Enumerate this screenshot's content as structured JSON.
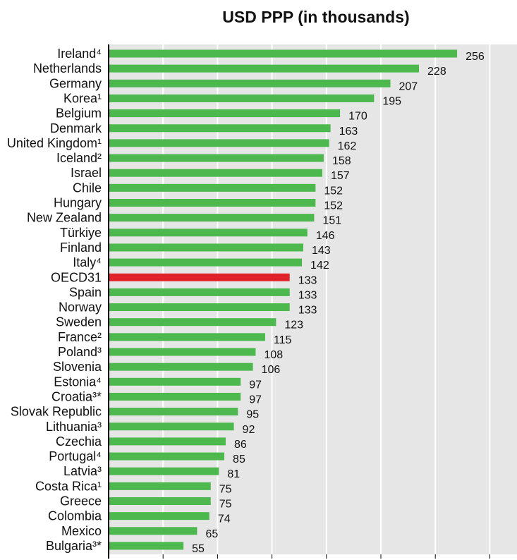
{
  "chart_data": {
    "type": "bar",
    "orientation": "horizontal",
    "title": "USD PPP (in thousands)",
    "xlabel": "",
    "ylabel": "",
    "xlim": [
      0,
      300
    ],
    "grid": true,
    "categories": [
      "Ireland⁴",
      "Netherlands",
      "Germany",
      "Korea¹",
      "Belgium",
      "Denmark",
      "United Kingdom¹",
      "Iceland²",
      "Israel",
      "Chile",
      "Hungary",
      "New Zealand",
      "Türkiye",
      "Finland",
      "Italy⁴",
      "OECD31",
      "Spain",
      "Norway",
      "Sweden",
      "France²",
      "Poland³",
      "Slovenia",
      "Estonia⁴",
      "Croatia³*",
      "Slovak Republic",
      "Lithuania³",
      "Czechia",
      "Portugal⁴",
      "Latvia³",
      "Costa Rica¹",
      "Greece",
      "Colombia",
      "Mexico",
      "Bulgaria³*"
    ],
    "values": [
      256,
      228,
      207,
      195,
      170,
      163,
      162,
      158,
      157,
      152,
      152,
      151,
      146,
      143,
      142,
      133,
      133,
      133,
      123,
      115,
      108,
      106,
      97,
      97,
      95,
      92,
      86,
      85,
      81,
      75,
      75,
      74,
      65,
      55
    ],
    "highlight": "OECD31",
    "colors": {
      "bar": "#4db84d",
      "highlight": "#e0232b",
      "plot_bg": "#e6e6e6",
      "grid": "#ffffff",
      "axis": "#000000"
    }
  }
}
